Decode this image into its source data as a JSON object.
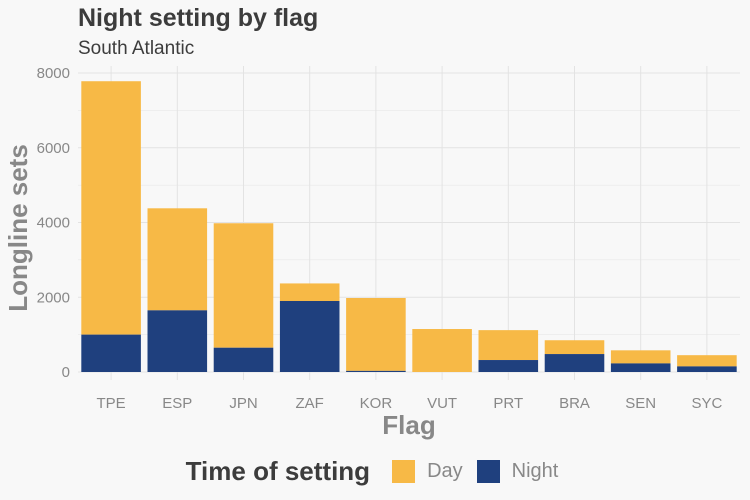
{
  "title": "Night setting by flag",
  "subtitle": "South Atlantic",
  "colors": {
    "day": "#f7b946",
    "night": "#1f407e",
    "grid": "#e3e3e3",
    "background": "#f8f8f8"
  },
  "legend": {
    "title": "Time of setting",
    "items": [
      {
        "label": "Day",
        "color": "#f7b946"
      },
      {
        "label": "Night",
        "color": "#1f407e"
      }
    ]
  },
  "chart_data": {
    "type": "bar",
    "stacked": true,
    "title": "Night setting by flag",
    "subtitle": "South Atlantic",
    "xlabel": "Flag",
    "ylabel": "Longline sets",
    "categories": [
      "TPE",
      "ESP",
      "JPN",
      "ZAF",
      "KOR",
      "VUT",
      "PRT",
      "BRA",
      "SEN",
      "SYC"
    ],
    "series": [
      {
        "name": "Night",
        "values": [
          1000,
          1650,
          650,
          1900,
          30,
          0,
          320,
          480,
          230,
          150
        ]
      },
      {
        "name": "Day",
        "values": [
          6780,
          2730,
          3330,
          470,
          1950,
          1150,
          800,
          370,
          350,
          300
        ]
      }
    ],
    "ylim": [
      0,
      8000
    ],
    "yticks": [
      0,
      2000,
      4000,
      6000,
      8000
    ],
    "grid": true,
    "legend_position": "bottom"
  }
}
